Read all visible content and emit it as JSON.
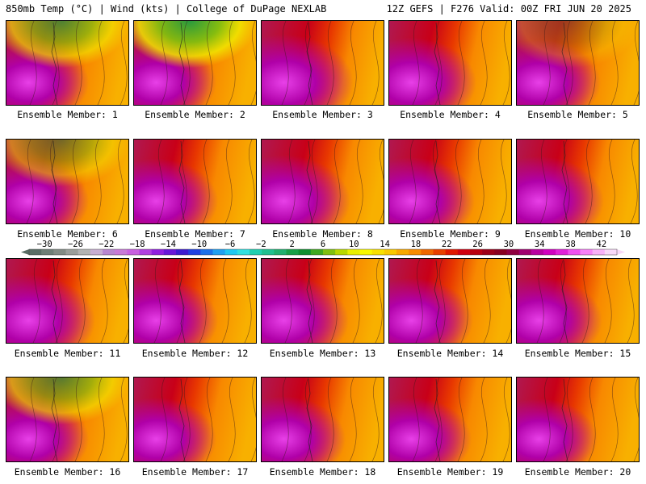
{
  "header": {
    "left": "850mb Temp (°C) | Wind (kts) | College of DuPage NEXLAB",
    "right": "12Z GEFS | F276 Valid: 00Z FRI JUN 20 2025"
  },
  "members": [
    {
      "label": "Ensemble Member: 1",
      "warm": 0.55,
      "cool": 0.55
    },
    {
      "label": "Ensemble Member: 2",
      "warm": 0.55,
      "cool": 0.75
    },
    {
      "label": "Ensemble Member: 3",
      "warm": 0.85,
      "cool": 0.0
    },
    {
      "label": "Ensemble Member: 4",
      "warm": 0.7,
      "cool": 0.0
    },
    {
      "label": "Ensemble Member: 5",
      "warm": 0.6,
      "cool": 0.1
    },
    {
      "label": "Ensemble Member: 6",
      "warm": 0.55,
      "cool": 0.35
    },
    {
      "label": "Ensemble Member: 7",
      "warm": 0.6,
      "cool": 0.0
    },
    {
      "label": "Ensemble Member: 8",
      "warm": 0.75,
      "cool": 0.0
    },
    {
      "label": "Ensemble Member: 9",
      "warm": 0.65,
      "cool": 0.0
    },
    {
      "label": "Ensemble Member: 10",
      "warm": 0.7,
      "cool": 0.0
    },
    {
      "label": "Ensemble Member: 11",
      "warm": 0.75,
      "cool": 0.0
    },
    {
      "label": "Ensemble Member: 12",
      "warm": 0.6,
      "cool": 0.0
    },
    {
      "label": "Ensemble Member: 13",
      "warm": 0.7,
      "cool": 0.0
    },
    {
      "label": "Ensemble Member: 14",
      "warm": 0.6,
      "cool": 0.0
    },
    {
      "label": "Ensemble Member: 15",
      "warm": 0.65,
      "cool": 0.0
    },
    {
      "label": "Ensemble Member: 16",
      "warm": 0.55,
      "cool": 0.5
    },
    {
      "label": "Ensemble Member: 17",
      "warm": 0.55,
      "cool": 0.0
    },
    {
      "label": "Ensemble Member: 18",
      "warm": 0.6,
      "cool": 0.0
    },
    {
      "label": "Ensemble Member: 19",
      "warm": 0.55,
      "cool": 0.0
    },
    {
      "label": "Ensemble Member: 20",
      "warm": 0.5,
      "cool": 0.0
    }
  ],
  "colorbar": {
    "labels": [
      "-30",
      "-26",
      "-22",
      "-18",
      "-14",
      "-10",
      "-6",
      "-2",
      "2",
      "6",
      "10",
      "14",
      "18",
      "22",
      "26",
      "30",
      "34",
      "38",
      "42"
    ],
    "colors": [
      "#5a6e66",
      "#6e7e76",
      "#828b84",
      "#9a9e9a",
      "#b2b3b2",
      "#c8aed2",
      "#b886d0",
      "#c87ad8",
      "#c860e0",
      "#b040e0",
      "#9020e0",
      "#6818d8",
      "#3c1cd0",
      "#2040e0",
      "#1c70e8",
      "#20a0f0",
      "#20c8f0",
      "#30e0e0",
      "#20d0b0",
      "#20c090",
      "#20b070",
      "#18a048",
      "#109030",
      "#40a820",
      "#80c010",
      "#b8d800",
      "#e8f000",
      "#f8f800",
      "#f8e000",
      "#f8c800",
      "#f8a800",
      "#f88c00",
      "#f06800",
      "#e84000",
      "#e01800",
      "#d00010",
      "#b80010",
      "#9c0018",
      "#880020",
      "#900040",
      "#a00070",
      "#b800a0",
      "#d000c0",
      "#e020d8",
      "#f050f0",
      "#f880f8",
      "#f8b0f8",
      "#f8d8f8"
    ]
  }
}
